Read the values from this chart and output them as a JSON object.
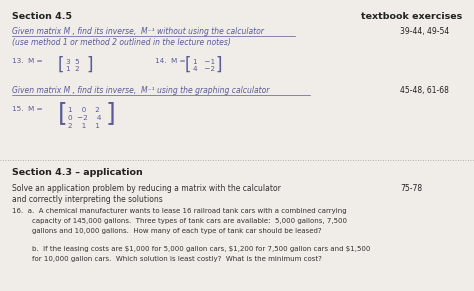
{
  "bg_color": "#f0ede8",
  "section_45": "Section 4.5",
  "textbook_exercises": "textbook exercises",
  "underline1": "Given matrix M , find its inverse,  M⁻¹ without using the calculator",
  "subtext1": "(use method 1 or method 2 outlined in the lecture notes)",
  "range1": "39-44, 49-54",
  "prob13": "13.  M = ",
  "matrix13_top": "3  5",
  "matrix13_bot": "1  2",
  "prob14": "14.  M = ",
  "matrix14_top": "1   −1",
  "matrix14_bot": "4   −2",
  "underline2": "Given matrix M , find its inverse,  M⁻¹ using the graphing calculator",
  "range2": "45-48, 61-68",
  "prob15": "15.  M = ",
  "matrix15_r1": "1    0    2",
  "matrix15_r2": "0  −2    4",
  "matrix15_r3": "2    1    1",
  "section_43": "Section 4.3 – application",
  "solve_text1": "Solve an application problem by reducing a matrix with the calculator",
  "solve_text2": "and correctly interpreting the solutions",
  "range3": "75-78",
  "prob16a": "16.  a.  A chemical manufacturer wants to lease 16 railroad tank cars with a combined carrying",
  "prob16a2": "capacity of 145,000 gallons.  Three types of tank cars are available:  5,000 gallons, 7,500",
  "prob16a3": "gallons and 10,000 gallons.  How many of each type of tank car should be leased?",
  "prob16b": "b.  If the leasing costs are $1,000 for 5,000 gallon cars, $1,200 for 7,500 gallon cars and $1,500",
  "prob16b2": "for 10,000 gallon cars.  Which solution is least costly?  What is the minimum cost?",
  "purple": "#5a5a9a",
  "black": "#222222",
  "darkgray": "#333333",
  "separator_color": "#999999"
}
